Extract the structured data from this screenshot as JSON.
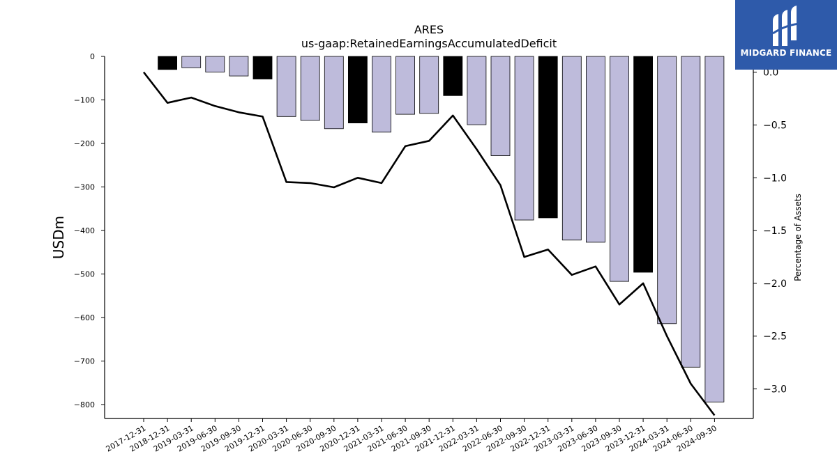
{
  "chart_data": {
    "type": "bar+line",
    "title": "ARES",
    "subtitle": "us-gaap:RetainedEarningsAccumulatedDeficit",
    "ylabel": "USDm",
    "ylabel_right": "Percentage of Assets",
    "categories": [
      "2017-12-31",
      "2018-12-31",
      "2019-03-31",
      "2019-06-30",
      "2019-09-30",
      "2019-12-31",
      "2020-03-31",
      "2020-06-30",
      "2020-09-30",
      "2020-12-31",
      "2021-03-31",
      "2021-06-30",
      "2021-09-30",
      "2021-12-31",
      "2022-03-31",
      "2022-06-30",
      "2022-09-30",
      "2022-12-31",
      "2023-03-31",
      "2023-06-30",
      "2023-09-30",
      "2023-12-31",
      "2024-03-31",
      "2024-06-30",
      "2024-09-30"
    ],
    "bars": {
      "name": "",
      "values": [
        null,
        -30,
        -26,
        -36,
        -45,
        -52,
        -138,
        -147,
        -166,
        -153,
        -174,
        -133,
        -131,
        -90,
        -157,
        -228,
        -376,
        -371,
        -422,
        -427,
        -517,
        -496,
        -614,
        -714,
        -794
      ],
      "highlight": [
        false,
        true,
        false,
        false,
        false,
        true,
        false,
        false,
        false,
        true,
        false,
        false,
        false,
        true,
        false,
        false,
        false,
        true,
        false,
        false,
        false,
        true,
        false,
        false,
        false
      ],
      "color": "#bebbdb",
      "highlight_color": "#000000"
    },
    "line": {
      "name": "",
      "values": [
        0.0,
        -0.29,
        -0.24,
        -0.32,
        -0.38,
        -0.42,
        -1.04,
        -1.05,
        -1.09,
        -1.0,
        -1.05,
        -0.7,
        -0.65,
        -0.41,
        -0.73,
        -1.07,
        -1.75,
        -1.68,
        -1.92,
        -1.84,
        -2.2,
        -2.0,
        -2.5,
        -2.95,
        -3.25
      ],
      "color": "#000000"
    },
    "ylim": [
      -832,
      0
    ],
    "yticks": [
      0,
      -100,
      -200,
      -300,
      -400,
      -500,
      -600,
      -700,
      -800
    ],
    "ylim_right": [
      -3.28,
      0.15
    ],
    "yticks_right": [
      0.0,
      -0.5,
      -1.0,
      -1.5,
      -2.0,
      -2.5,
      -3.0
    ],
    "yticks_right_labels": [
      "0.0",
      "−0.5",
      "−1.0",
      "−1.5",
      "−2.0",
      "−2.5",
      "−3.0"
    ],
    "yticks_labels": [
      "0",
      "−100",
      "−200",
      "−300",
      "−400",
      "−500",
      "−600",
      "−700",
      "−800"
    ],
    "grid": false
  },
  "logo": {
    "text": "MIDGARD FINANCE",
    "color": "#2e5aaa",
    "icon": "midgard-logo-icon"
  }
}
